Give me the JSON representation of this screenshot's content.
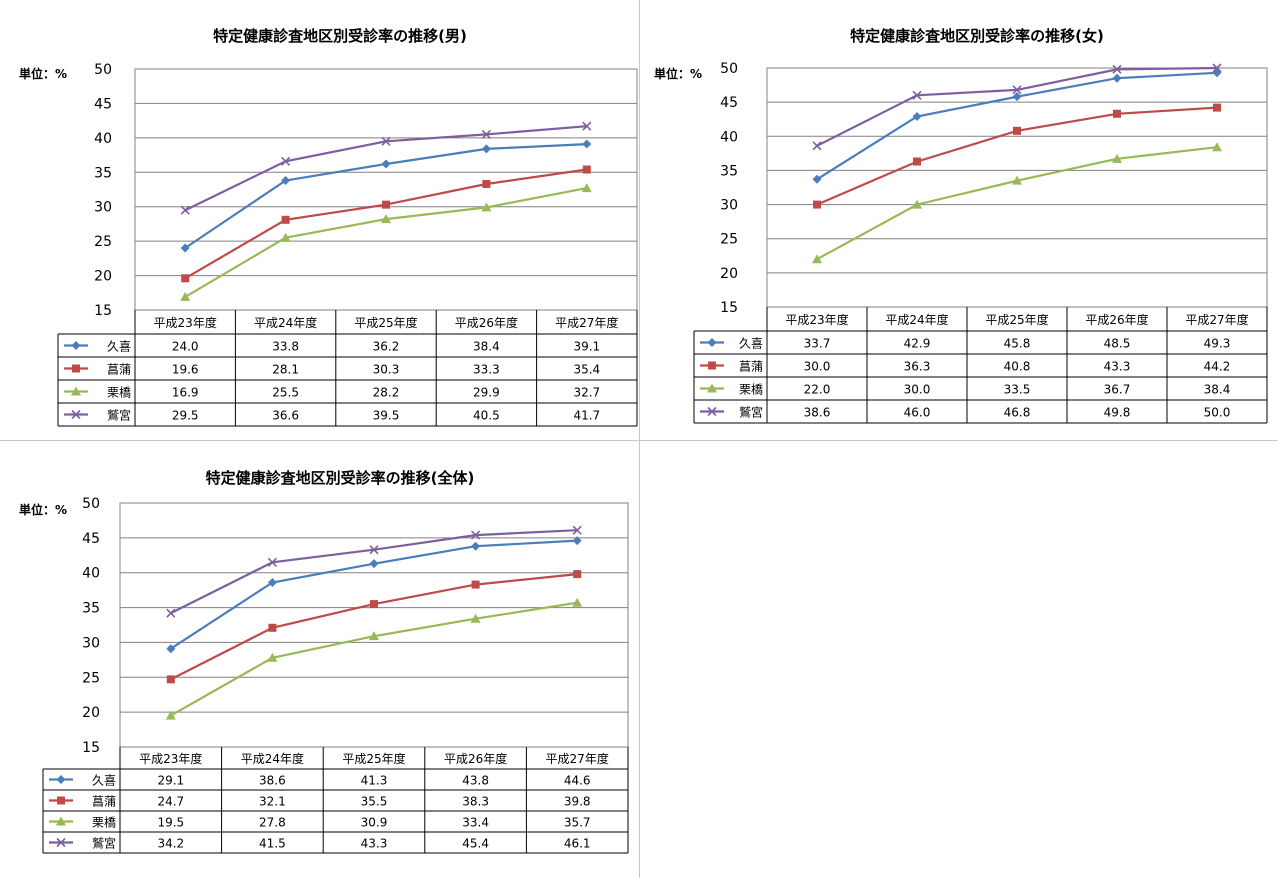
{
  "chart_data": [
    {
      "type": "line",
      "title": "特定健康診査地区別受診率の推移(男)",
      "unit_label": "単位：%",
      "categories": [
        "平成23年度",
        "平成24年度",
        "平成25年度",
        "平成26年度",
        "平成27年度"
      ],
      "ylim": [
        15,
        50
      ],
      "yticks": [
        15,
        20,
        25,
        30,
        35,
        40,
        45,
        50
      ],
      "grid": true,
      "legend": "data-table",
      "series": [
        {
          "name": "久喜",
          "color": "#4a7ebb",
          "marker": "diamond",
          "values": [
            24.0,
            33.8,
            36.2,
            38.4,
            39.1
          ],
          "labels": [
            "24.0",
            "33.8",
            "36.2",
            "38.4",
            "39.1"
          ]
        },
        {
          "name": "菖蒲",
          "color": "#be4b48",
          "marker": "square",
          "values": [
            19.6,
            28.1,
            30.3,
            33.3,
            35.4
          ],
          "labels": [
            "19.6",
            "28.1",
            "30.3",
            "33.3",
            "35.4"
          ]
        },
        {
          "name": "栗橋",
          "color": "#98b954",
          "marker": "triangle",
          "values": [
            16.9,
            25.5,
            28.2,
            29.9,
            32.7
          ],
          "labels": [
            "16.9",
            "25.5",
            "28.2",
            "29.9",
            "32.7"
          ]
        },
        {
          "name": "鷲宮",
          "color": "#7d5fa0",
          "marker": "x",
          "values": [
            29.5,
            36.6,
            39.5,
            40.5,
            41.7
          ],
          "labels": [
            "29.5",
            "36.6",
            "39.5",
            "40.5",
            "41.7"
          ]
        }
      ]
    },
    {
      "type": "line",
      "title": "特定健康診査地区別受診率の推移(女)",
      "unit_label": "単位：%",
      "categories": [
        "平成23年度",
        "平成24年度",
        "平成25年度",
        "平成26年度",
        "平成27年度"
      ],
      "ylim": [
        15,
        50
      ],
      "yticks": [
        15,
        20,
        25,
        30,
        35,
        40,
        45,
        50
      ],
      "grid": true,
      "legend": "data-table",
      "series": [
        {
          "name": "久喜",
          "color": "#4a7ebb",
          "marker": "diamond",
          "values": [
            33.7,
            42.9,
            45.8,
            48.5,
            49.3
          ],
          "labels": [
            "33.7",
            "42.9",
            "45.8",
            "48.5",
            "49.3"
          ]
        },
        {
          "name": "菖蒲",
          "color": "#be4b48",
          "marker": "square",
          "values": [
            30.0,
            36.3,
            40.8,
            43.3,
            44.2
          ],
          "labels": [
            "30.0",
            "36.3",
            "40.8",
            "43.3",
            "44.2"
          ]
        },
        {
          "name": "栗橋",
          "color": "#98b954",
          "marker": "triangle",
          "values": [
            22.0,
            30.0,
            33.5,
            36.7,
            38.4
          ],
          "labels": [
            "22.0",
            "30.0",
            "33.5",
            "36.7",
            "38.4"
          ]
        },
        {
          "name": "鷲宮",
          "color": "#7d5fa0",
          "marker": "x",
          "values": [
            38.6,
            46.0,
            46.8,
            49.8,
            50.0
          ],
          "labels": [
            "38.6",
            "46.0",
            "46.8",
            "49.8",
            "50.0"
          ]
        }
      ]
    },
    {
      "type": "line",
      "title": "特定健康診査地区別受診率の推移(全体)",
      "unit_label": "単位：%",
      "categories": [
        "平成23年度",
        "平成24年度",
        "平成25年度",
        "平成26年度",
        "平成27年度"
      ],
      "ylim": [
        15,
        50
      ],
      "yticks": [
        15,
        20,
        25,
        30,
        35,
        40,
        45,
        50
      ],
      "grid": true,
      "legend": "data-table",
      "series": [
        {
          "name": "久喜",
          "color": "#4a7ebb",
          "marker": "diamond",
          "values": [
            29.1,
            38.6,
            41.3,
            43.8,
            44.6
          ],
          "labels": [
            "29.1",
            "38.6",
            "41.3",
            "43.8",
            "44.6"
          ]
        },
        {
          "name": "菖蒲",
          "color": "#be4b48",
          "marker": "square",
          "values": [
            24.7,
            32.1,
            35.5,
            38.3,
            39.8
          ],
          "labels": [
            "24.7",
            "32.1",
            "35.5",
            "38.3",
            "39.8"
          ]
        },
        {
          "name": "栗橋",
          "color": "#98b954",
          "marker": "triangle",
          "values": [
            19.5,
            27.8,
            30.9,
            33.4,
            35.7
          ],
          "labels": [
            "19.5",
            "27.8",
            "30.9",
            "33.4",
            "35.7"
          ]
        },
        {
          "name": "鷲宮",
          "color": "#7d5fa0",
          "marker": "x",
          "values": [
            34.2,
            41.5,
            43.3,
            45.4,
            46.1
          ],
          "labels": [
            "34.2",
            "41.5",
            "43.3",
            "45.4",
            "46.1"
          ]
        }
      ]
    }
  ]
}
